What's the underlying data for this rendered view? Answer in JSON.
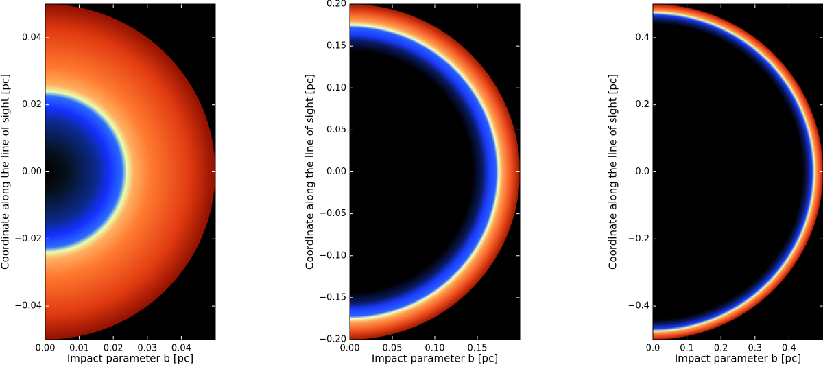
{
  "chart_data": [
    {
      "type": "image",
      "xlabel": "Impact parameter b [pc]",
      "ylabel": "Coordinate along the line of sight [pc]",
      "xlim": [
        0,
        0.05
      ],
      "ylim": [
        -0.05,
        0.05
      ],
      "xticks": [
        {
          "value": 0,
          "label": "0.00"
        },
        0.01,
        0.02,
        0.03,
        0.04
      ],
      "yticks": [
        {
          "value": -0.04,
          "label": "−0.04"
        },
        {
          "value": -0.02,
          "label": "−0.02"
        },
        {
          "value": 0,
          "label": "0.00"
        },
        0.02,
        0.04
      ]
    },
    {
      "type": "image",
      "xlabel": "Impact parameter b [pc]",
      "ylabel": "Coordinate along the line of sight [pc]",
      "xlim": [
        0,
        0.2
      ],
      "ylim": [
        -0.2,
        0.2
      ],
      "xticks": [
        {
          "value": 0,
          "label": "0.00"
        },
        0.05,
        {
          "value": 0.1,
          "label": "0.10"
        },
        0.15
      ],
      "yticks": [
        {
          "value": -0.2,
          "label": "−0.20"
        },
        {
          "value": -0.15,
          "label": "−0.15"
        },
        {
          "value": -0.1,
          "label": "−0.10"
        },
        {
          "value": -0.05,
          "label": "−0.05"
        },
        {
          "value": 0,
          "label": "0.00"
        },
        0.05,
        {
          "value": 0.1,
          "label": "0.10"
        },
        0.15,
        {
          "value": 0.2,
          "label": "0.20"
        }
      ]
    },
    {
      "type": "image",
      "xlabel": "Impact parameter b [pc]",
      "ylabel": "Coordinate along the line of sight [pc]",
      "xlim": [
        0,
        0.5
      ],
      "ylim": [
        -0.5,
        0.5
      ],
      "xticks": [
        {
          "value": 0,
          "label": "0.0"
        },
        0.1,
        0.2,
        0.3,
        0.4
      ],
      "yticks": [
        {
          "value": -0.4,
          "label": "−0.4"
        },
        {
          "value": -0.2,
          "label": "−0.2"
        },
        {
          "value": 0,
          "label": "0.0"
        },
        0.2,
        0.4
      ]
    }
  ]
}
